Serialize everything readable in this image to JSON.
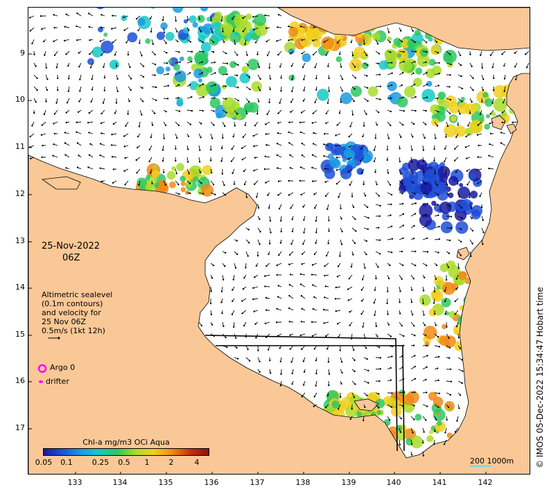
{
  "map": {
    "y_axis_labels": [
      "9",
      "10",
      "11",
      "12",
      "13",
      "14",
      "15",
      "16",
      "17"
    ],
    "x_axis_labels": [
      "133",
      "134",
      "135",
      "136",
      "137",
      "138",
      "139",
      "140",
      "141",
      "142"
    ],
    "date": "25-Nov-2022",
    "time": "06Z",
    "description_lines": [
      "Altimetric sealevel",
      "(0.1m contours)",
      "and velocity for",
      "25 Nov 06Z",
      "0.5m/s (1kt 12h)"
    ],
    "legend": {
      "argo_label": "Argo 0",
      "drifter_label": "drifter",
      "argo_color": "#ff00ff",
      "drifter_color": "#ff00ff"
    },
    "colorbar": {
      "title": "Chl-a mg/m3 OCi Aqua",
      "ticks": [
        "0.05",
        "0.1",
        "0.25",
        "0.5",
        "1",
        "2",
        "4"
      ],
      "colors": [
        "#1a1aa0",
        "#1e4fd8",
        "#1a9ae0",
        "#18c8c8",
        "#2ec860",
        "#a8dc28",
        "#f0d020",
        "#f08a18",
        "#c83010",
        "#8a1408"
      ]
    },
    "scale": {
      "label": "200  1000m"
    },
    "credit": "© IMOS 05-Dec-2022 15:34:47 Hobart time",
    "colors": {
      "land": "#fac896",
      "ocean": "#ffffff",
      "arrows": "#000000",
      "coast": "#000000"
    }
  }
}
